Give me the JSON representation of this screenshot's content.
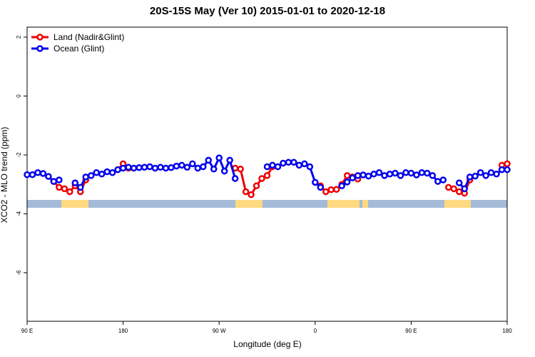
{
  "chart_data": {
    "type": "line",
    "title": "20S-15S May (Ver 10)   2015-01-01 to 2020-12-18",
    "x_label": "Longitude (deg E)",
    "y_label": "XCO2 - MLO trend (ppm)",
    "xlim": [
      90,
      540
    ],
    "ylim": [
      -7.65,
      2.34
    ],
    "xticks": [
      {
        "value": 90,
        "label": "90 E"
      },
      180,
      {
        "value": 270,
        "label": "90 W"
      },
      {
        "value": 360,
        "label": "0"
      },
      {
        "value": 450,
        "label": "90 E"
      },
      {
        "value": 540,
        "label": "180"
      }
    ],
    "yticks": [
      2,
      0,
      -2,
      -4,
      -6
    ],
    "legend": "top-left",
    "x": [
      90,
      95,
      100,
      105,
      110,
      115,
      120,
      125,
      130,
      135,
      140,
      145,
      150,
      155,
      160,
      165,
      170,
      175,
      180,
      185,
      190,
      195,
      200,
      205,
      210,
      215,
      220,
      225,
      230,
      235,
      240,
      245,
      250,
      255,
      260,
      265,
      270,
      275,
      280,
      285,
      290,
      295,
      300,
      305,
      310,
      315,
      320,
      325,
      330,
      335,
      340,
      345,
      350,
      355,
      360,
      365,
      370,
      375,
      380,
      385,
      390,
      395,
      400,
      405,
      410,
      415,
      420,
      425,
      430,
      435,
      440,
      445,
      450,
      455,
      460,
      465,
      470,
      475,
      480,
      485,
      490,
      495,
      500,
      505,
      510,
      515,
      520,
      525,
      530,
      535,
      540
    ],
    "series": [
      {
        "name": "Land (Nadir&Glint)",
        "color": "#ee0000",
        "values": [
          null,
          null,
          null,
          null,
          null,
          -2.9,
          -3.1,
          -3.15,
          -3.25,
          -3.05,
          -3.25,
          -2.85,
          null,
          null,
          null,
          null,
          null,
          -2.5,
          -2.3,
          -2.45,
          null,
          null,
          null,
          null,
          null,
          null,
          null,
          null,
          null,
          null,
          null,
          null,
          null,
          null,
          null,
          null,
          null,
          null,
          null,
          -2.45,
          -2.48,
          -3.25,
          -3.35,
          -3.05,
          -2.8,
          -2.7,
          -2.4,
          null,
          null,
          null,
          null,
          null,
          null,
          null,
          null,
          -3.05,
          -3.25,
          -3.18,
          -3.17,
          -3.0,
          -2.7,
          -2.75,
          -2.82,
          null,
          null,
          null,
          null,
          null,
          null,
          null,
          null,
          null,
          null,
          null,
          null,
          null,
          null,
          null,
          null,
          -3.1,
          -3.15,
          -3.25,
          -3.3,
          -2.85,
          null,
          null,
          null,
          null,
          null,
          -2.35,
          -2.3
        ]
      },
      {
        "name": "Ocean (Glint)",
        "color": "#0000ee",
        "values": [
          -2.67,
          -2.67,
          -2.6,
          -2.63,
          -2.73,
          -2.9,
          -2.85,
          null,
          null,
          -2.95,
          -3.1,
          -2.75,
          -2.7,
          -2.6,
          -2.65,
          -2.57,
          -2.6,
          -2.5,
          -2.45,
          -2.42,
          -2.45,
          -2.43,
          -2.42,
          -2.4,
          -2.45,
          -2.42,
          -2.45,
          -2.43,
          -2.38,
          -2.35,
          -2.42,
          -2.3,
          -2.45,
          -2.4,
          -2.18,
          -2.48,
          -2.1,
          -2.55,
          -2.18,
          -2.8,
          null,
          null,
          null,
          null,
          null,
          -2.4,
          -2.35,
          -2.4,
          -2.28,
          -2.25,
          -2.25,
          -2.35,
          -2.3,
          -2.4,
          -2.93,
          -3.1,
          null,
          null,
          null,
          -3.05,
          -2.92,
          -2.78,
          -2.7,
          -2.68,
          -2.72,
          -2.65,
          -2.6,
          -2.7,
          -2.65,
          -2.62,
          -2.7,
          -2.6,
          -2.62,
          -2.68,
          -2.6,
          -2.62,
          -2.7,
          -2.9,
          -2.85,
          null,
          null,
          -2.95,
          -3.15,
          -2.75,
          -2.72,
          -2.6,
          -2.7,
          -2.6,
          -2.65,
          -2.5,
          -2.5
        ]
      }
    ]
  }
}
